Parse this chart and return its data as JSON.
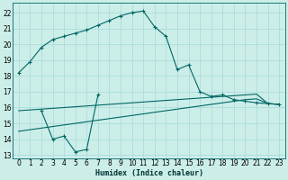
{
  "xlabel": "Humidex (Indice chaleur)",
  "background_color": "#cceee8",
  "grid_color": "#aadddd",
  "line_color": "#006666",
  "xlim": [
    -0.5,
    23.5
  ],
  "ylim": [
    12.8,
    22.6
  ],
  "xticks": [
    0,
    1,
    2,
    3,
    4,
    5,
    6,
    7,
    8,
    9,
    10,
    11,
    12,
    13,
    14,
    15,
    16,
    17,
    18,
    19,
    20,
    21,
    22,
    23
  ],
  "yticks": [
    13,
    14,
    15,
    16,
    17,
    18,
    19,
    20,
    21,
    22
  ],
  "series": [
    {
      "x": [
        0,
        1,
        2,
        3,
        4,
        5,
        6,
        7,
        8,
        9,
        10,
        11,
        12,
        13,
        14,
        15,
        16,
        17,
        18,
        19,
        20,
        21,
        22,
        23
      ],
      "y": [
        18.2,
        18.9,
        19.8,
        20.3,
        20.5,
        20.7,
        20.9,
        21.2,
        21.5,
        21.8,
        22.0,
        22.1,
        21.1,
        20.5,
        18.4,
        18.7,
        17.0,
        16.7,
        16.8,
        16.5,
        16.4,
        16.3,
        16.25,
        16.2
      ],
      "marker": true
    },
    {
      "x": [
        0,
        1,
        2,
        3,
        4,
        5,
        6,
        7,
        8,
        9,
        10,
        11,
        12,
        13,
        14,
        15,
        16,
        17,
        18,
        19,
        20,
        21,
        22,
        23
      ],
      "y": [
        15.8,
        15.85,
        15.9,
        15.95,
        16.0,
        16.05,
        16.1,
        16.15,
        16.2,
        16.25,
        16.3,
        16.35,
        16.4,
        16.45,
        16.5,
        16.55,
        16.6,
        16.65,
        16.7,
        16.75,
        16.8,
        16.85,
        16.25,
        16.2
      ],
      "marker": false
    },
    {
      "x": [
        0,
        1,
        2,
        3,
        4,
        5,
        6,
        7,
        8,
        9,
        10,
        11,
        12,
        13,
        14,
        15,
        16,
        17,
        18,
        19,
        20,
        21,
        22,
        23
      ],
      "y": [
        14.5,
        14.6,
        14.7,
        14.8,
        14.9,
        15.0,
        15.1,
        15.2,
        15.3,
        15.4,
        15.5,
        15.6,
        15.7,
        15.8,
        15.9,
        16.0,
        16.1,
        16.2,
        16.3,
        16.4,
        16.5,
        16.55,
        16.25,
        16.2
      ],
      "marker": false
    },
    {
      "x": [
        2,
        3,
        4,
        5,
        6,
        7
      ],
      "y": [
        15.8,
        14.0,
        14.2,
        13.2,
        13.35,
        16.8
      ],
      "marker": true
    }
  ]
}
